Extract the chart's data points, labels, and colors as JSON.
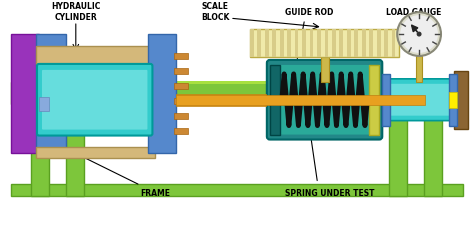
{
  "bg_color": "#ffffff",
  "table_color": "#7dc63b",
  "table_edge_color": "#5aa020",
  "labels": {
    "hydraulic_cylinder": "HYDRAULIC\nCYLINDER",
    "scale_block": "SCALE\nBLOCK",
    "guide_rod": "GUIDE ROD",
    "load_gauge": "LOAD GAUGE",
    "frame": "FRAME",
    "spring_under_test": "SPRING UNDER TEST"
  }
}
